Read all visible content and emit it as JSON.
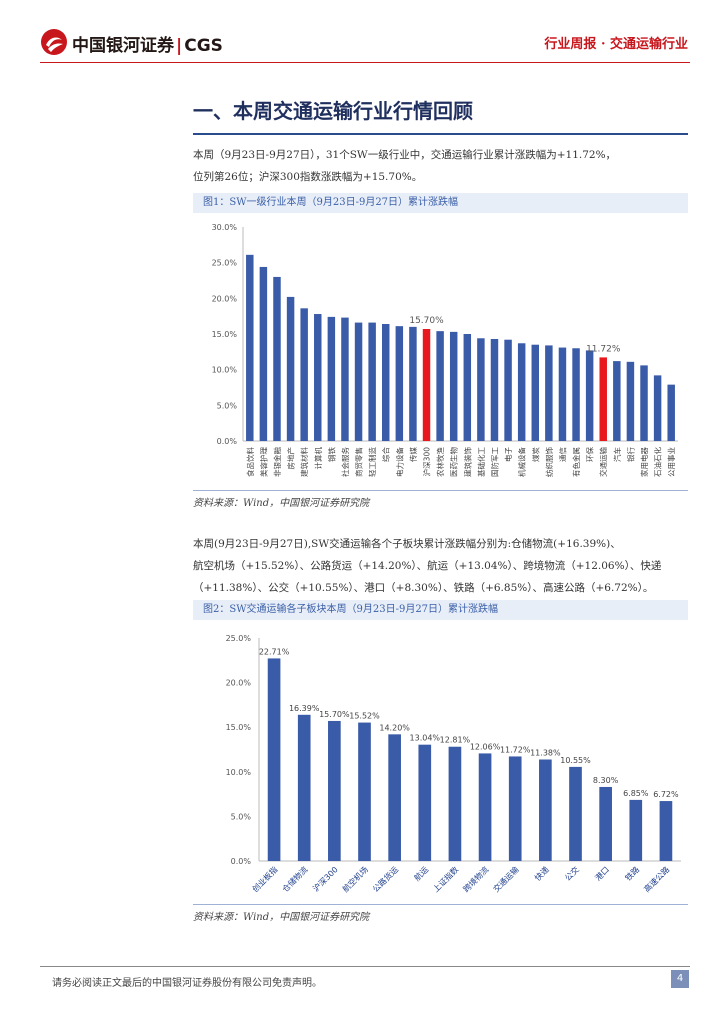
{
  "header": {
    "logo_text": "中国银河证券",
    "logo_sep": "|",
    "logo_brand": "CGS",
    "report_type": "行业周报 · 交通运输行业"
  },
  "section": {
    "title": "一、本周交通运输行业行情回顾"
  },
  "para1": {
    "line1": "本周（9月23日-9月27日），31个SW一级行业中，交通运输行业累计涨跌幅为+11.72%，",
    "line2": "位列第26位；沪深300指数涨跌幅为+15.70%。"
  },
  "para2": {
    "line1": "本周(9月23日-9月27日),SW交通运输各个子板块累计涨跌幅分别为:仓储物流(+16.39%)、",
    "line2": "航空机场（+15.52%）、公路货运（+14.20%）、航运（+13.04%）、跨境物流（+12.06%）、快递",
    "line3": "（+11.38%）、公交（+10.55%）、港口（+8.30%）、铁路（+6.85%）、高速公路（+6.72%）。"
  },
  "figures": {
    "fig1_title": "图1：SW一级行业本周（9月23日-9月27日）累计涨跌幅",
    "fig2_title": "图2：SW交通运输各子板块本周（9月23日-9月27日）累计涨跌幅",
    "source1": "资料来源：Wind，中国银河证券研究院",
    "source2": "资料来源：Wind，中国银河证券研究院"
  },
  "footer": {
    "disclaimer": "请务必阅读正文最后的中国银河证券股份有限公司免责声明。",
    "page": "4"
  },
  "colors": {
    "brand_red": "#c8161d",
    "bar_blue": "#3a5ba8",
    "highlight_red": "#e8191e"
  },
  "chart_data": [
    {
      "type": "bar",
      "title": "图1：SW一级行业本周（9月23日-9月27日）累计涨跌幅",
      "categories": [
        "食品饮料",
        "美容护理",
        "非银金融",
        "房地产",
        "建筑材料",
        "计算机",
        "钢铁",
        "社会服务",
        "商贸零售",
        "轻工制造",
        "综合",
        "电力设备",
        "传媒",
        "沪深300",
        "农林牧渔",
        "医药生物",
        "建筑装饰",
        "基础化工",
        "国防军工",
        "电子",
        "机械设备",
        "煤炭",
        "纺织服饰",
        "通信",
        "有色金属",
        "环保",
        "交通运输",
        "汽车",
        "银行",
        "家用电器",
        "石油石化",
        "公用事业"
      ],
      "values": [
        26.1,
        24.4,
        23.0,
        20.2,
        18.6,
        17.8,
        17.4,
        17.3,
        16.6,
        16.6,
        16.4,
        16.1,
        16.0,
        15.7,
        15.4,
        15.3,
        15.0,
        14.4,
        14.3,
        14.2,
        13.7,
        13.5,
        13.4,
        13.1,
        13.0,
        12.7,
        11.72,
        11.2,
        11.1,
        10.6,
        9.2,
        7.9
      ],
      "highlight": [
        "沪深300",
        "交通运输"
      ],
      "annotations": [
        {
          "category": "沪深300",
          "label": "15.70%"
        },
        {
          "category": "交通运输",
          "label": "11.72%"
        }
      ],
      "yticks": [
        "0.0%",
        "5.0%",
        "10.0%",
        "15.0%",
        "20.0%",
        "25.0%",
        "30.0%"
      ],
      "ylim": [
        0,
        30
      ]
    },
    {
      "type": "bar",
      "title": "图2：SW交通运输各子板块本周（9月23日-9月27日）累计涨跌幅",
      "categories": [
        "创业板指",
        "仓储物流",
        "沪深300",
        "航空机场",
        "公路货运",
        "航运",
        "上证指数",
        "跨境物流",
        "交通运输",
        "快递",
        "公交",
        "港口",
        "铁路",
        "高速公路"
      ],
      "values": [
        22.71,
        16.39,
        15.7,
        15.52,
        14.2,
        13.04,
        12.81,
        12.06,
        11.72,
        11.38,
        10.55,
        8.3,
        6.85,
        6.72
      ],
      "labels": [
        "22.71%",
        "16.39%",
        "15.70%",
        "15.52%",
        "14.20%",
        "13.04%",
        "12.81%",
        "12.06%",
        "11.72%",
        "11.38%",
        "10.55%",
        "8.30%",
        "6.85%",
        "6.72%"
      ],
      "yticks": [
        "0.0%",
        "5.0%",
        "10.0%",
        "15.0%",
        "20.0%",
        "25.0%"
      ],
      "ylim": [
        0,
        25
      ]
    }
  ]
}
